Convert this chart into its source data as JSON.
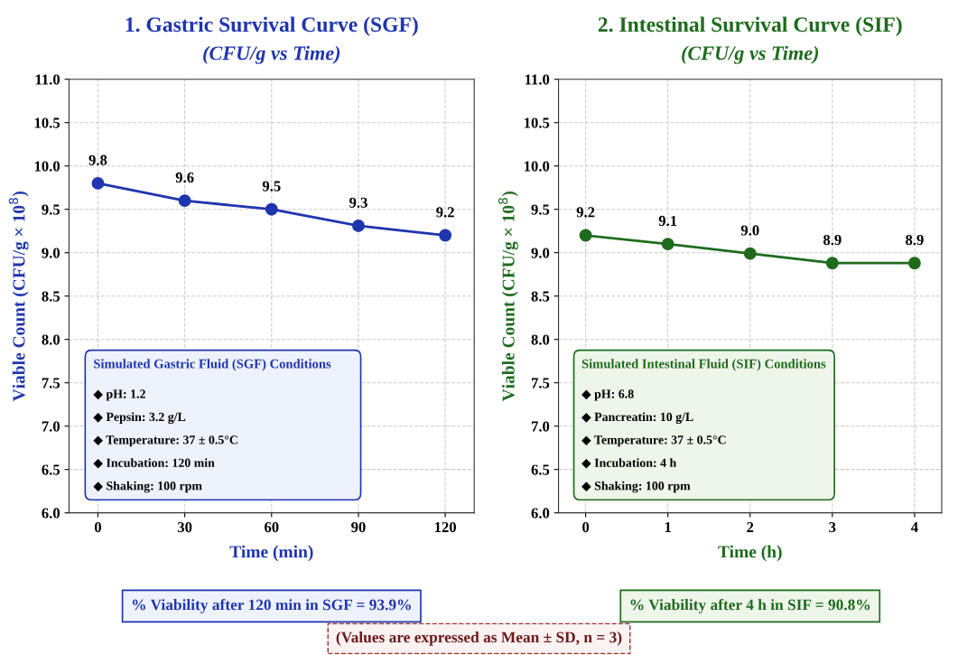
{
  "chart_data": [
    {
      "type": "line",
      "title": "1. Gastric Survival Curve (SGF)",
      "subtitle": "(CFU/g vs Time)",
      "xlabel": "Time (min)",
      "ylabel": "Viable Count (CFU/g × 10$^{8}$)",
      "x": [
        0,
        30,
        60,
        90,
        120
      ],
      "xlim": [
        -10,
        130
      ],
      "xticks": [
        0,
        30,
        60,
        90,
        120
      ],
      "ylim": [
        6.0,
        11.0
      ],
      "yticks": [
        {
          "value": 6.0,
          "label": "6.0"
        },
        {
          "value": 6.5,
          "label": "6.5"
        },
        {
          "value": 7.0,
          "label": "7.0"
        },
        {
          "value": 7.5,
          "label": "7.5"
        },
        {
          "value": 8.0,
          "label": "8.0"
        },
        {
          "value": 8.5,
          "label": "8.5"
        },
        {
          "value": 9.0,
          "label": "9.0"
        },
        {
          "value": 9.5,
          "label": "9.5"
        },
        {
          "value": 10.0,
          "label": "10.0"
        },
        {
          "value": 10.5,
          "label": "10.5"
        },
        {
          "value": 11.0,
          "label": "11.0"
        }
      ],
      "series": [
        {
          "color": "#1f35b0",
          "values": [
            9.8,
            9.6,
            9.5,
            9.31,
            9.2
          ],
          "value_labels": [
            "9.8",
            "9.6",
            "9.5",
            "9.3",
            "9.2"
          ]
        }
      ],
      "marker": "circle",
      "line_style": "solid",
      "grid": true,
      "annotations": [
        "Simulated Gastric Fluid (SGF) Conditions",
        "◆ pH: 1.2",
        "◆ Pepsin: 3.2 g/L",
        "◆ Temperature: 37 ± 0.5°C",
        "◆ Incubation: 120 min",
        "◆ Shaking: 100 rpm",
        "% Viability after 120 min in SGF = 93.9%"
      ]
    },
    {
      "type": "line",
      "title": "2. Intestinal Survival Curve (SIF)",
      "subtitle": "(CFU/g vs Time)",
      "xlabel": "Time (h)",
      "ylabel": "Viable Count (CFU/g × 10$^{8}$)",
      "x": [
        0,
        1,
        2,
        3,
        4
      ],
      "xlim": [
        -0.33,
        4.33
      ],
      "xticks": [
        0,
        1,
        2,
        3,
        4
      ],
      "ylim": [
        6.0,
        11.0
      ],
      "yticks": [
        {
          "value": 6.0,
          "label": "6.0"
        },
        {
          "value": 6.5,
          "label": "6.5"
        },
        {
          "value": 7.0,
          "label": "7.0"
        },
        {
          "value": 7.5,
          "label": "7.5"
        },
        {
          "value": 8.0,
          "label": "8.0"
        },
        {
          "value": 8.5,
          "label": "8.5"
        },
        {
          "value": 9.0,
          "label": "9.0"
        },
        {
          "value": 9.5,
          "label": "9.5"
        },
        {
          "value": 10.0,
          "label": "10.0"
        },
        {
          "value": 10.5,
          "label": "10.5"
        },
        {
          "value": 11.0,
          "label": "11.0"
        }
      ],
      "series": [
        {
          "color": "#1e6b1e",
          "values": [
            9.2,
            9.1,
            8.99,
            8.88,
            8.88
          ],
          "value_labels": [
            "9.2",
            "9.1",
            "9.0",
            "8.9",
            "8.9"
          ]
        }
      ],
      "marker": "circle",
      "line_style": "solid",
      "grid": true,
      "annotations": [
        "Simulated Intestinal Fluid (SIF) Conditions",
        "◆ pH: 6.8",
        "◆ Pancreatin: 10 g/L",
        "◆ Temperature: 37 ± 0.5°C",
        "◆ Incubation: 4 h",
        "◆ Shaking: 100 rpm",
        "% Viability after 4 h in SIF = 90.8%",
        "(Values are expressed as Mean ± SD, n = 3)"
      ]
    }
  ]
}
